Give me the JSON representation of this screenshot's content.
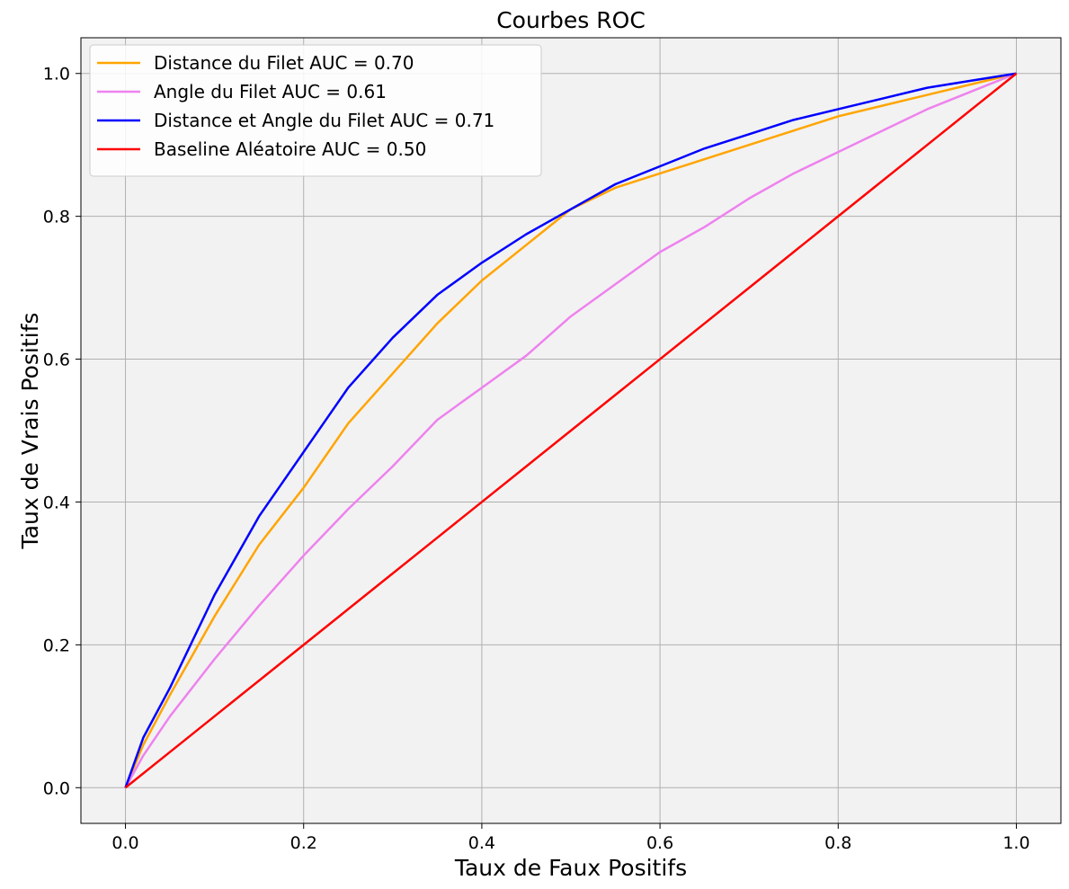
{
  "chart_data": {
    "type": "line",
    "title": "Courbes ROC",
    "xlabel": "Taux de Faux Positifs",
    "ylabel": "Taux de Vrais Positifs",
    "xlim": [
      -0.05,
      1.05
    ],
    "ylim": [
      -0.05,
      1.05
    ],
    "xticks": [
      "0.0",
      "0.2",
      "0.4",
      "0.6",
      "0.8",
      "1.0"
    ],
    "yticks": [
      "0.0",
      "0.2",
      "0.4",
      "0.6",
      "0.8",
      "1.0"
    ],
    "grid": true,
    "background": "#f2f2f2",
    "legend_position": "top-left",
    "series": [
      {
        "name": "Distance du Filet AUC = 0.70",
        "color": "#ffa500",
        "x": [
          0,
          0.02,
          0.05,
          0.1,
          0.15,
          0.2,
          0.25,
          0.3,
          0.35,
          0.4,
          0.45,
          0.5,
          0.55,
          0.6,
          0.65,
          0.7,
          0.75,
          0.8,
          0.85,
          0.9,
          0.95,
          1.0
        ],
        "y": [
          0,
          0.06,
          0.13,
          0.24,
          0.34,
          0.42,
          0.51,
          0.58,
          0.65,
          0.71,
          0.76,
          0.81,
          0.84,
          0.86,
          0.88,
          0.9,
          0.92,
          0.94,
          0.955,
          0.97,
          0.985,
          1.0
        ]
      },
      {
        "name": "Angle du Filet AUC = 0.61",
        "color": "#ee82ee",
        "x": [
          0,
          0.02,
          0.05,
          0.1,
          0.15,
          0.2,
          0.25,
          0.3,
          0.35,
          0.4,
          0.45,
          0.5,
          0.55,
          0.6,
          0.65,
          0.7,
          0.75,
          0.8,
          0.85,
          0.9,
          0.95,
          1.0
        ],
        "y": [
          0,
          0.045,
          0.1,
          0.18,
          0.255,
          0.325,
          0.39,
          0.45,
          0.515,
          0.56,
          0.605,
          0.66,
          0.705,
          0.75,
          0.785,
          0.825,
          0.86,
          0.89,
          0.92,
          0.95,
          0.975,
          1.0
        ]
      },
      {
        "name": "Distance et Angle du Filet AUC = 0.71",
        "color": "#0000ff",
        "x": [
          0,
          0.02,
          0.05,
          0.1,
          0.15,
          0.2,
          0.25,
          0.3,
          0.35,
          0.4,
          0.45,
          0.5,
          0.55,
          0.6,
          0.65,
          0.7,
          0.75,
          0.8,
          0.85,
          0.9,
          0.95,
          1.0
        ],
        "y": [
          0,
          0.07,
          0.14,
          0.27,
          0.38,
          0.47,
          0.56,
          0.63,
          0.69,
          0.735,
          0.775,
          0.81,
          0.845,
          0.87,
          0.895,
          0.915,
          0.935,
          0.95,
          0.965,
          0.98,
          0.99,
          1.0
        ]
      },
      {
        "name": "Baseline Aléatoire AUC = 0.50",
        "color": "#ff0000",
        "x": [
          0,
          0.05,
          0.1,
          0.15,
          0.2,
          0.25,
          0.3,
          0.35,
          0.4,
          0.45,
          0.5,
          0.55,
          0.6,
          0.65,
          0.7,
          0.75,
          0.8,
          0.85,
          0.9,
          0.95,
          1.0
        ],
        "y": [
          0,
          0.05,
          0.1,
          0.15,
          0.2,
          0.25,
          0.3,
          0.35,
          0.4,
          0.45,
          0.5,
          0.55,
          0.6,
          0.65,
          0.7,
          0.75,
          0.8,
          0.85,
          0.9,
          0.95,
          1.0
        ]
      }
    ]
  }
}
